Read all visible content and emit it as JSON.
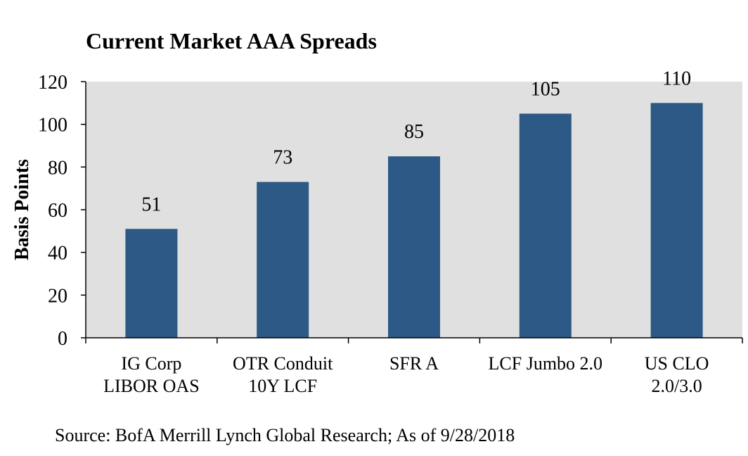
{
  "chart_data": {
    "type": "bar",
    "title": "Current Market AAA Spreads",
    "ylabel": "Basis Points",
    "xlabel": "",
    "ylim": [
      0,
      120
    ],
    "yticks": [
      0,
      20,
      40,
      60,
      80,
      100,
      120
    ],
    "categories": [
      [
        "IG Corp",
        "LIBOR OAS"
      ],
      [
        "OTR Conduit",
        "10Y LCF"
      ],
      [
        "SFR A"
      ],
      [
        "LCF Jumbo 2.0"
      ],
      [
        "US CLO",
        "2.0/3.0"
      ]
    ],
    "values": [
      51,
      73,
      85,
      105,
      110
    ],
    "data_labels": [
      "51",
      "73",
      "85",
      "105",
      "110"
    ],
    "bar_color": "#2c5985",
    "plot_background": "#e0e0e0",
    "grid": false,
    "legend": "none"
  },
  "footer": {
    "source": "Source: BofA Merrill Lynch Global Research; As of 9/28/2018"
  }
}
